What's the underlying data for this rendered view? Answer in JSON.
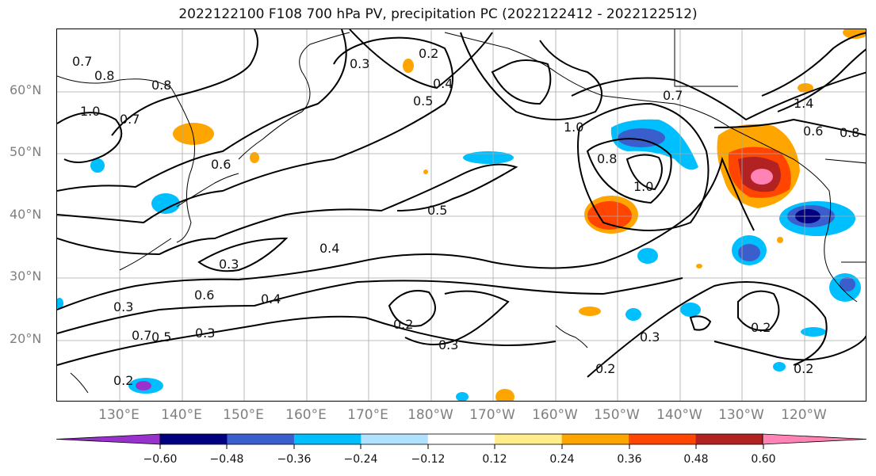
{
  "title": "2022122100 F108 700 hPa PV, precipitation PC (2022122412 - 2022122512)",
  "latitude_labels": [
    "60°N",
    "50°N",
    "40°N",
    "30°N",
    "20°N"
  ],
  "longitude_labels": [
    "130°E",
    "140°E",
    "150°E",
    "160°E",
    "170°E",
    "180°W",
    "170°W",
    "160°W",
    "150°W",
    "140°W",
    "130°W",
    "120°W"
  ],
  "colorbar": {
    "colors": [
      "#9932cc",
      "#000080",
      "#3a5fcd",
      "#00bfff",
      "#b0e2ff",
      "#ffffff",
      "#ffec8b",
      "#ffa500",
      "#ff4500",
      "#b22222",
      "#ff83b5"
    ],
    "tick_labels": [
      "−0.60",
      "−0.48",
      "−0.36",
      "−0.24",
      "−0.12",
      "0.12",
      "0.24",
      "0.36",
      "0.48",
      "0.60"
    ]
  },
  "contour_labels": [
    "0.8",
    "0.7",
    "1.0",
    "0.7",
    "0.8",
    "0.6",
    "0.3",
    "0.2",
    "0.5",
    "0.4",
    "1.0",
    "0.8",
    "1.0",
    "0.7",
    "0.6",
    "1.4",
    "0.8",
    "0.5",
    "0.4",
    "0.3",
    "0.3",
    "0.6",
    "0.4",
    "0.7",
    "0.5",
    "0.3",
    "0.2",
    "0.3",
    "0.2",
    "0.3",
    "0.2",
    "0.2",
    "0.2"
  ]
}
